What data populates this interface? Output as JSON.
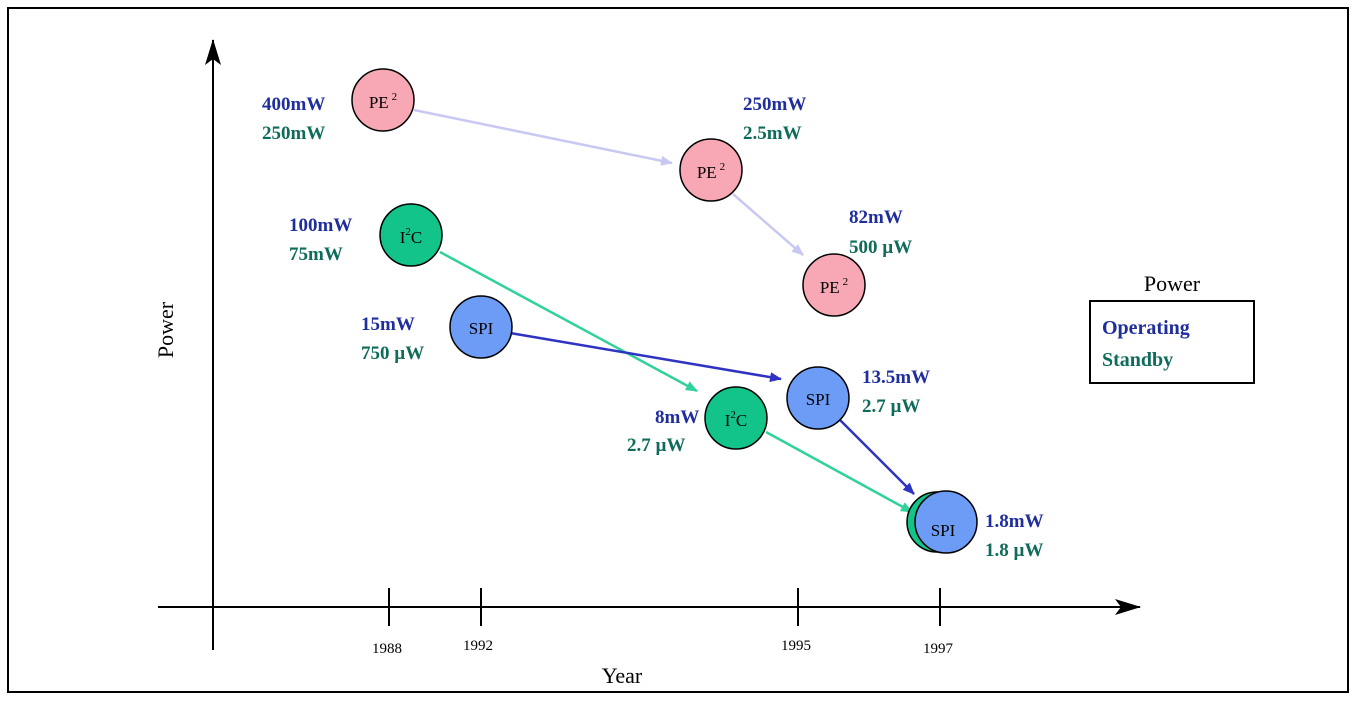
{
  "axes": {
    "x_label": "Year",
    "y_label": "Power",
    "years": [
      "1988",
      "1992",
      "1995",
      "1997"
    ]
  },
  "legend": {
    "title": "Power",
    "operating": "Operating",
    "standby": "Standby"
  },
  "colors": {
    "operating_text": "#1f2e9c",
    "standby_text": "#0f6b5a",
    "pe2_fill": "#f7a8b4",
    "i2c_fill": "#12c48a",
    "spi_fill": "#6c9cf5",
    "pe2_arrow": "#c8c8f2",
    "i2c_arrow": "#2fd29a",
    "spi_arrow": "#2e33c2"
  },
  "nodes": [
    {
      "id": "pe2-1988",
      "family": "PE2",
      "base": "PE",
      "sup": "2",
      "year": "1988",
      "operating": "400mW",
      "standby": "250mW"
    },
    {
      "id": "pe2-mid",
      "family": "PE2",
      "base": "PE",
      "sup": "2",
      "year": "",
      "operating": "250mW",
      "standby": "2.5mW"
    },
    {
      "id": "pe2-1995",
      "family": "PE2",
      "base": "PE",
      "sup": "2",
      "year": "",
      "operating": "82mW",
      "standby": "500 µW"
    },
    {
      "id": "i2c-1988",
      "family": "I2C",
      "base": "I",
      "sup": "2",
      "tail": "C",
      "year": "1988",
      "operating": "100mW",
      "standby": "75mW"
    },
    {
      "id": "i2c-mid",
      "family": "I2C",
      "base": "I",
      "sup": "2",
      "tail": "C",
      "year": "",
      "operating": "8mW",
      "standby": "2.7 µW"
    },
    {
      "id": "i2c-1997",
      "family": "I2C",
      "base": "",
      "sup": "",
      "year": "1997",
      "operating": "",
      "standby": ""
    },
    {
      "id": "spi-1992",
      "family": "SPI",
      "base": "SPI",
      "year": "1992",
      "operating": "15mW",
      "standby": "750 µW"
    },
    {
      "id": "spi-1995",
      "family": "SPI",
      "base": "SPI",
      "year": "1995",
      "operating": "13.5mW",
      "standby": "2.7 µW"
    },
    {
      "id": "spi-1997",
      "family": "SPI",
      "base": "SPI",
      "year": "1997",
      "operating": "1.8mW",
      "standby": "1.8 µW"
    }
  ],
  "arrows": [
    {
      "from": "pe2-1988",
      "to": "pe2-mid",
      "family": "PE2"
    },
    {
      "from": "pe2-mid",
      "to": "pe2-1995",
      "family": "PE2"
    },
    {
      "from": "i2c-1988",
      "to": "i2c-mid",
      "family": "I2C"
    },
    {
      "from": "i2c-mid",
      "to": "i2c-1997",
      "family": "I2C"
    },
    {
      "from": "spi-1992",
      "to": "spi-1995",
      "family": "SPI"
    },
    {
      "from": "spi-1995",
      "to": "spi-1997",
      "family": "SPI"
    }
  ]
}
